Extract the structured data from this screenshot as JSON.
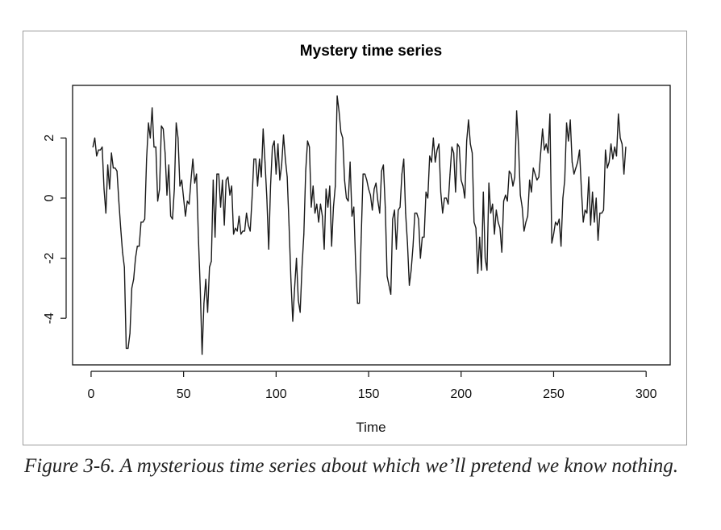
{
  "caption": "Figure 3-6. A mysterious time series about which we’ll pretend we know nothing.",
  "chart_data": {
    "type": "line",
    "title": "Mystery time series",
    "xlabel": "Time",
    "ylabel": "",
    "xlim": [
      -10,
      313
    ],
    "ylim": [
      -5.55,
      3.75
    ],
    "xticks": [
      0,
      50,
      100,
      150,
      200,
      250,
      300
    ],
    "yticks": [
      -4,
      -2,
      0,
      2
    ],
    "grid": false,
    "legend": "none",
    "line_color": "#1a1a1a",
    "series": [
      {
        "x_start": 1,
        "values": [
          1.7,
          2.0,
          1.4,
          1.6,
          1.6,
          1.7,
          0.3,
          -0.5,
          1.1,
          0.3,
          1.5,
          1.0,
          1.0,
          0.9,
          -0.1,
          -1.0,
          -1.8,
          -2.3,
          -5.0,
          -5.0,
          -4.5,
          -3.0,
          -2.7,
          -2.0,
          -1.6,
          -1.6,
          -0.8,
          -0.8,
          -0.7,
          1.3,
          2.5,
          2.0,
          3.0,
          1.7,
          1.7,
          -0.1,
          0.3,
          2.4,
          2.3,
          1.5,
          0.1,
          1.1,
          -0.6,
          -0.7,
          0.3,
          2.5,
          2.0,
          0.4,
          0.6,
          0.0,
          -0.6,
          -0.1,
          -0.2,
          0.6,
          1.3,
          0.5,
          0.8,
          -1.3,
          -3.0,
          -5.2,
          -3.5,
          -2.7,
          -3.8,
          -2.3,
          -2.1,
          0.6,
          -1.3,
          0.8,
          0.8,
          -0.3,
          0.6,
          -0.9,
          0.6,
          0.7,
          0.1,
          0.4,
          -1.2,
          -1.0,
          -1.1,
          -0.6,
          -1.2,
          -1.1,
          -1.1,
          -0.5,
          -0.9,
          -1.1,
          0.0,
          1.3,
          1.3,
          0.4,
          1.3,
          0.7,
          2.3,
          1.2,
          0.0,
          -1.7,
          0.4,
          1.7,
          1.9,
          0.8,
          1.8,
          0.6,
          1.1,
          2.1,
          1.3,
          0.7,
          -0.9,
          -2.7,
          -4.1,
          -3.0,
          -2.0,
          -3.4,
          -3.8,
          -2.3,
          -1.2,
          0.9,
          1.9,
          1.7,
          -0.3,
          0.4,
          -0.5,
          -0.2,
          -0.8,
          -0.2,
          -0.6,
          -1.7,
          0.3,
          -0.3,
          0.4,
          -1.6,
          -0.3,
          0.4,
          3.4,
          2.9,
          2.2,
          2.0,
          0.6,
          0.0,
          -0.1,
          1.2,
          -0.6,
          -0.3,
          -2.2,
          -3.5,
          -3.5,
          -1.3,
          0.8,
          0.8,
          0.6,
          0.3,
          0.1,
          -0.4,
          0.3,
          0.5,
          -0.1,
          -0.5,
          0.9,
          1.1,
          -0.3,
          -2.6,
          -2.9,
          -3.2,
          -0.7,
          -0.4,
          -1.7,
          -0.4,
          -0.3,
          0.8,
          1.3,
          -0.5,
          -1.5,
          -2.9,
          -2.4,
          -1.6,
          -0.5,
          -0.5,
          -0.7,
          -2.0,
          -1.3,
          -1.3,
          0.2,
          0.0,
          1.4,
          1.2,
          2.0,
          1.2,
          1.6,
          1.8,
          0.2,
          -0.5,
          0.0,
          0.0,
          -0.2,
          0.8,
          1.7,
          1.5,
          0.2,
          1.8,
          1.7,
          0.6,
          0.4,
          0.0,
          1.9,
          2.6,
          1.8,
          1.5,
          -0.8,
          -1.0,
          -2.5,
          -1.3,
          -2.4,
          0.2,
          -2.0,
          -2.4,
          0.5,
          -0.5,
          -0.2,
          -1.2,
          -0.4,
          -0.8,
          -1.0,
          -1.8,
          -0.1,
          0.1,
          -0.1,
          0.9,
          0.8,
          0.4,
          0.7,
          2.9,
          1.8,
          0.1,
          -0.3,
          -1.1,
          -0.8,
          -0.6,
          0.6,
          0.2,
          1.0,
          0.8,
          0.6,
          0.7,
          1.5,
          2.3,
          1.6,
          1.8,
          1.5,
          2.8,
          -1.5,
          -1.2,
          -0.8,
          -0.9,
          -0.7,
          -1.6,
          0.0,
          0.6,
          2.5,
          1.9,
          2.6,
          1.2,
          0.8,
          1.0,
          1.2,
          1.6,
          0.3,
          -0.8,
          -0.4,
          -0.5,
          0.7,
          -0.9,
          0.2,
          -0.8,
          0.0,
          -1.4,
          -0.5,
          -0.5,
          -0.4,
          1.6,
          1.0,
          1.2,
          1.8,
          1.3,
          1.7,
          1.4,
          2.8,
          2.0,
          1.8,
          0.8,
          1.7
        ]
      }
    ]
  }
}
